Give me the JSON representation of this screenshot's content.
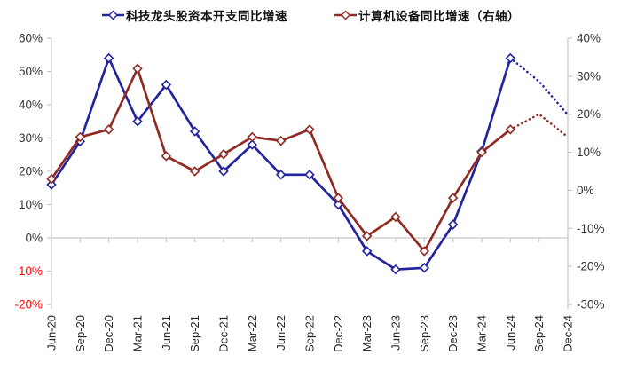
{
  "legend": {
    "items": [
      {
        "label": "科技龙头股资本开支同比增速",
        "color": "#2323A0"
      },
      {
        "label": "计算机设备同比增速（右轴）",
        "color": "#8F2B24"
      }
    ]
  },
  "chart_data": {
    "type": "line",
    "title": "",
    "categories": [
      "Jun-20",
      "Sep-20",
      "Dec-20",
      "Mar-21",
      "Jun-21",
      "Sep-21",
      "Dec-21",
      "Mar-22",
      "Jun-22",
      "Sep-22",
      "Dec-22",
      "Mar-23",
      "Jun-23",
      "Sep-23",
      "Dec-23",
      "Mar-24",
      "Jun-24",
      "Sep-24",
      "Dec-24"
    ],
    "series": [
      {
        "name": "科技龙头股资本开支同比增速",
        "axis": "left",
        "color": "#2323A0",
        "marker": "open-diamond",
        "solid_through": "Jun-24",
        "forecast_style": "dotted",
        "values": [
          16,
          29,
          54,
          35,
          46,
          32,
          20,
          28,
          19,
          19,
          10,
          -4,
          -9.5,
          -9,
          4,
          26,
          54,
          47,
          37
        ]
      },
      {
        "name": "计算机设备同比增速（右轴）",
        "axis": "right",
        "color": "#8F2B24",
        "marker": "open-diamond",
        "solid_through": "Jun-24",
        "forecast_style": "dotted",
        "values": [
          3,
          14,
          16,
          32,
          9,
          5,
          9.5,
          14,
          13,
          16,
          -2,
          -12,
          -7,
          -16,
          -2,
          10,
          16,
          20,
          14
        ]
      }
    ],
    "forecast_from_index": 16,
    "left_axis": {
      "min": -20,
      "max": 60,
      "tick_step": 10,
      "tick_labels": [
        "60%",
        "50%",
        "40%",
        "30%",
        "20%",
        "10%",
        "0%",
        "-10%",
        "-20%"
      ],
      "tick_color": "#333333",
      "negative_tick_color": "#FF0000"
    },
    "right_axis": {
      "min": -30,
      "max": 40,
      "tick_step": 10,
      "tick_labels": [
        "40%",
        "30%",
        "20%",
        "10%",
        "0%",
        "-10%",
        "-20%",
        "-30%"
      ],
      "tick_color": "#333333"
    },
    "x_axis": {
      "label_rotation": -90,
      "label_color": "#262626",
      "category_axis_at_left_value": 0
    },
    "grid": false,
    "legend_position": "top",
    "axis_line_color": "#C6C6C6",
    "background": "#FFFFFF"
  }
}
